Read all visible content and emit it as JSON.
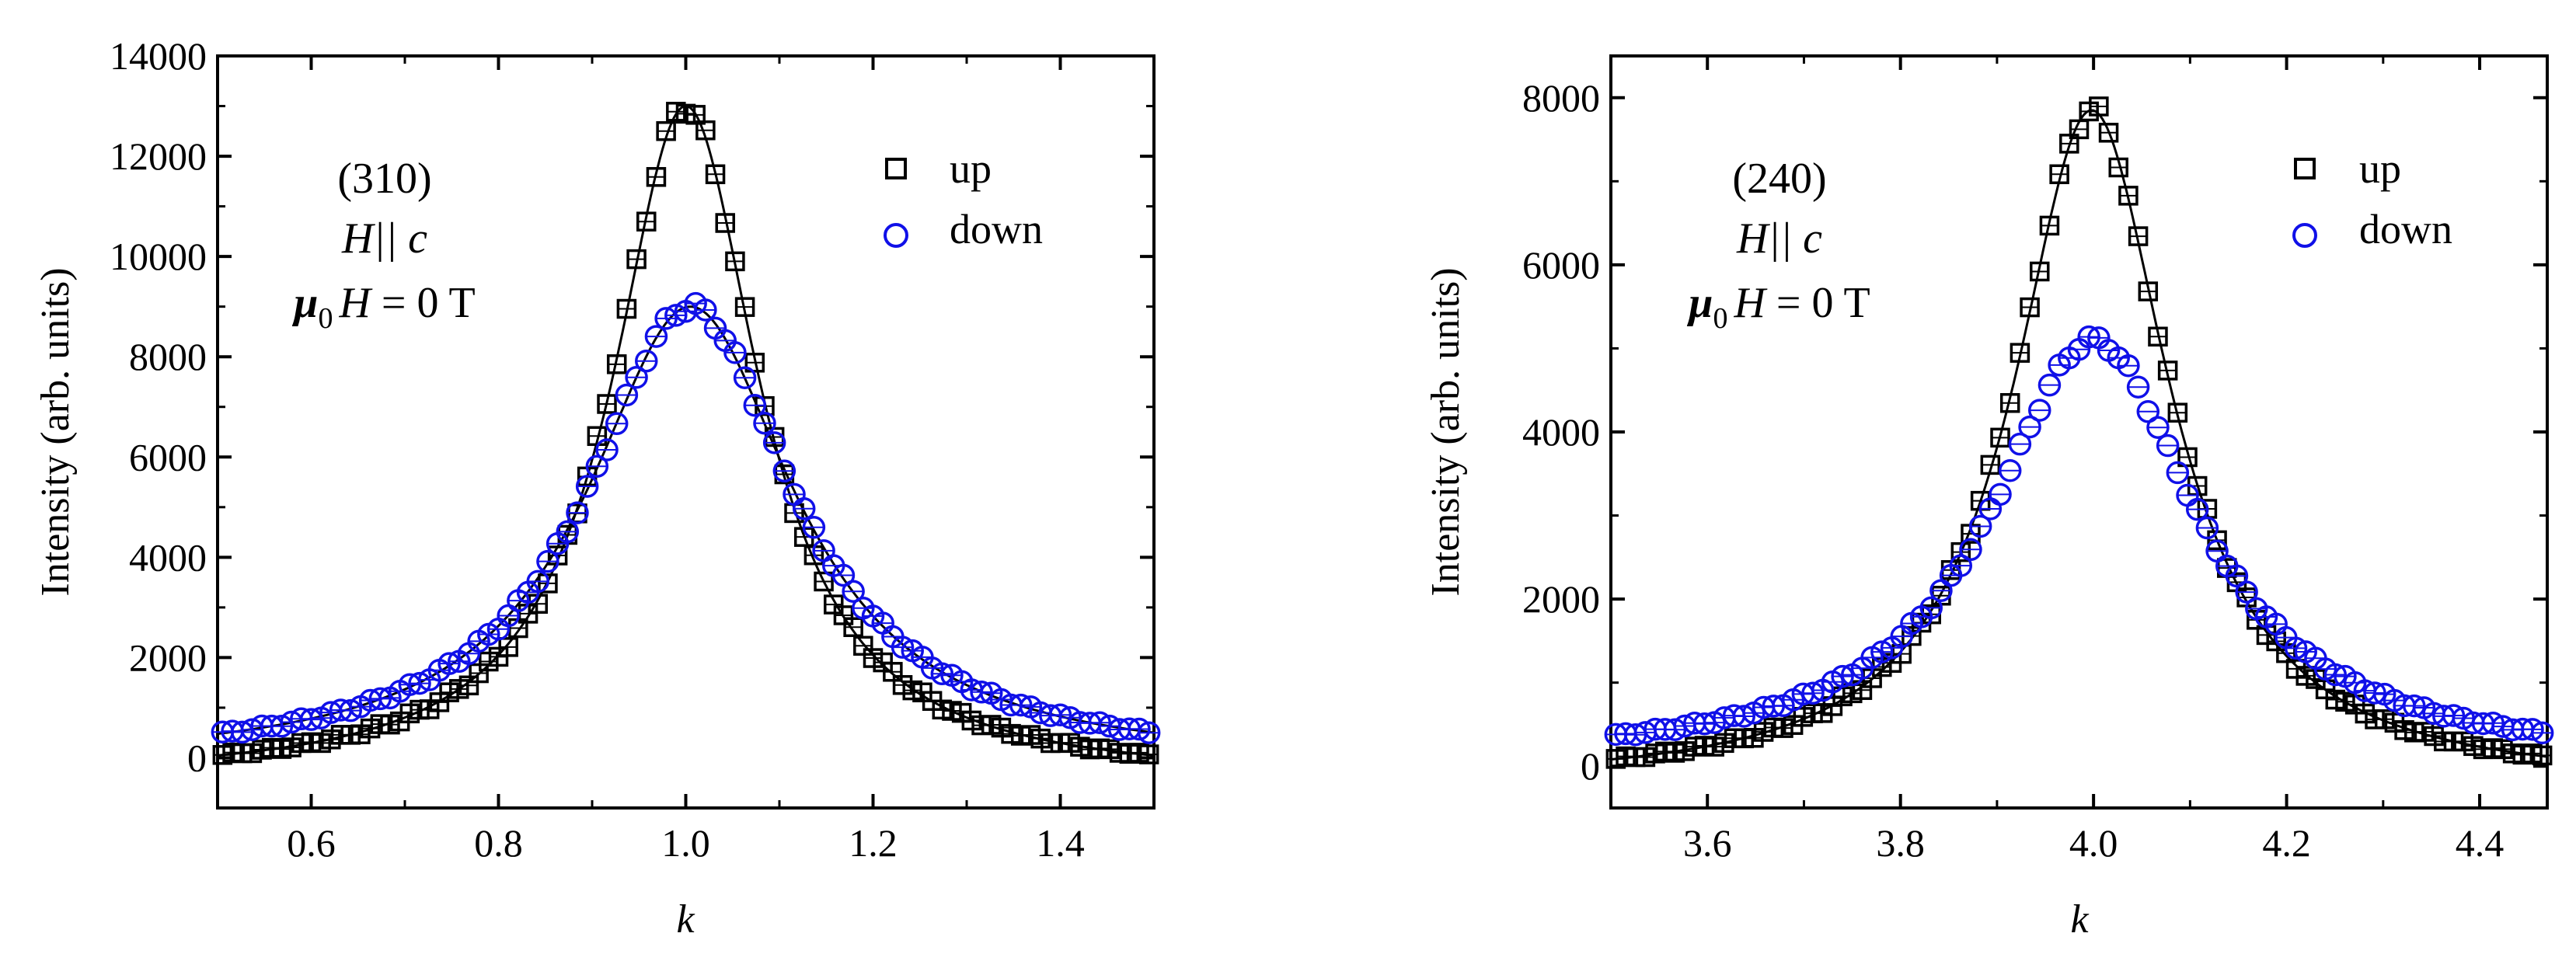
{
  "chart_data": [
    {
      "type": "scatter",
      "panel": "left",
      "title": "",
      "xlabel": "k",
      "ylabel": "Intensity (arb. units)",
      "xlim": [
        0.5,
        1.5
      ],
      "ylim": [
        -1000,
        14000
      ],
      "xticks": [
        0.6,
        0.8,
        1.0,
        1.2,
        1.4
      ],
      "yticks": [
        0,
        2000,
        4000,
        6000,
        8000,
        10000,
        12000,
        14000
      ],
      "xtick_labels": [
        "0.6",
        "0.8",
        "1.0",
        "1.2",
        "1.4"
      ],
      "ytick_labels": [
        "0",
        "2000",
        "4000",
        "6000",
        "8000",
        "10000",
        "12000",
        "14000"
      ],
      "legend": [
        "up",
        "down"
      ],
      "legend_location": "top-right",
      "annotations": {
        "reflection": "(310)",
        "field_dir_H": "H",
        "field_dir_rest": "|| c",
        "mu": "μ",
        "mu_sub": "0",
        "field_H": "H",
        "field_value": " = 0 T"
      },
      "series": [
        {
          "name": "up",
          "marker": "square",
          "color": "#000000",
          "center": 1.0,
          "peak": 13000,
          "gamma": 0.095,
          "baseline": -420,
          "fit_line": true
        },
        {
          "name": "down",
          "marker": "circle",
          "color": "#1010e8",
          "center": 1.005,
          "peak": 9000,
          "gamma": 0.135,
          "baseline": -130,
          "fit_line": true
        }
      ]
    },
    {
      "type": "scatter",
      "panel": "right",
      "title": "",
      "xlabel": "k",
      "ylabel": "Intensity (arb. units)",
      "xlim": [
        3.5,
        4.47
      ],
      "ylim": [
        -500,
        8500
      ],
      "xticks": [
        3.6,
        3.8,
        4.0,
        4.2,
        4.4
      ],
      "yticks": [
        0,
        2000,
        4000,
        6000,
        8000
      ],
      "xtick_labels": [
        "3.6",
        "3.8",
        "4.0",
        "4.2",
        "4.4"
      ],
      "ytick_labels": [
        "0",
        "2000",
        "4000",
        "6000",
        "8000"
      ],
      "legend": [
        "up",
        "down"
      ],
      "legend_location": "top-right",
      "annotations": {
        "reflection": "(240)",
        "field_dir_H": "H",
        "field_dir_rest": "|| c",
        "mu": "μ",
        "mu_sub": "0",
        "field_H": "H",
        "field_value": " = 0 T"
      },
      "series": [
        {
          "name": "up",
          "marker": "square",
          "color": "#000000",
          "center": 3.998,
          "peak": 7850,
          "gamma": 0.098,
          "baseline": -220,
          "fit_line": true
        },
        {
          "name": "down",
          "marker": "circle",
          "color": "#1010e8",
          "center": 4.0,
          "peak": 5100,
          "gamma": 0.13,
          "baseline": 40,
          "fit_line": false
        }
      ]
    }
  ]
}
